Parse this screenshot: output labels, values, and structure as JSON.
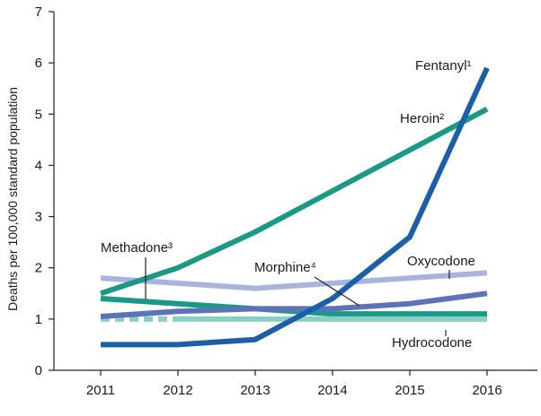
{
  "chart_data": {
    "type": "line",
    "title": "",
    "xlabel": "",
    "ylabel": "Deaths per 100,000 standard population",
    "x": [
      2011,
      2012,
      2013,
      2014,
      2015,
      2016
    ],
    "ylim": [
      0,
      7
    ],
    "yticks": [
      0,
      1,
      2,
      3,
      4,
      5,
      6,
      7
    ],
    "grid": false,
    "series": [
      {
        "name": "Oxycodone",
        "color": "#a8b4e0",
        "values": [
          1.8,
          1.7,
          1.6,
          1.7,
          1.8,
          1.9
        ]
      },
      {
        "name": "Methadone³",
        "color": "#1a9a86",
        "values": [
          1.4,
          1.3,
          1.2,
          1.1,
          1.1,
          1.1
        ]
      },
      {
        "name": "Hydrocodone",
        "color": "#88cfc4",
        "values": [
          1.0,
          1.0,
          1.0,
          1.0,
          1.0,
          1.0
        ]
      },
      {
        "name": "Morphine⁴",
        "color": "#5e72b8",
        "values": [
          1.05,
          1.15,
          1.2,
          1.2,
          1.3,
          1.5
        ]
      },
      {
        "name": "Heroin²",
        "color": "#1a9a86",
        "values": [
          1.5,
          2.0,
          2.7,
          3.5,
          4.3,
          5.1
        ]
      },
      {
        "name": "Fentanyl¹",
        "color": "#1b5fa8",
        "values": [
          0.5,
          0.5,
          0.6,
          1.4,
          2.6,
          5.9
        ]
      }
    ]
  }
}
